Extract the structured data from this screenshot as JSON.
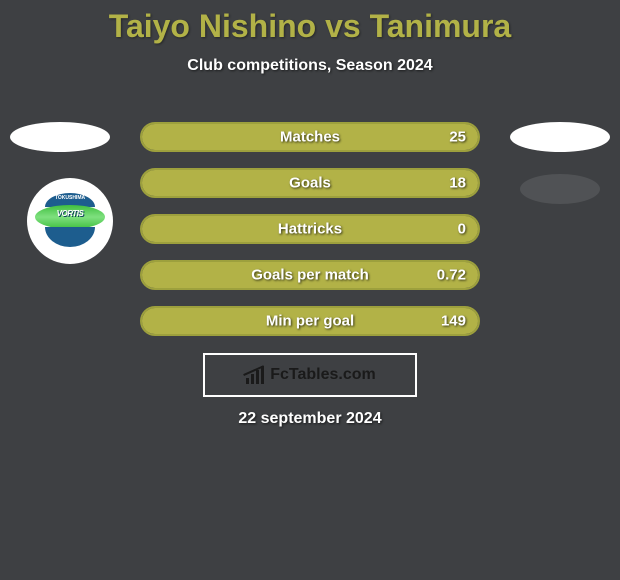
{
  "title": "Taiyo Nishino vs Tanimura",
  "title_color": "#b2b247",
  "subtitle": "Club competitions, Season 2024",
  "background_color": "#3e4043",
  "bar_fill_color": "#b2b247",
  "bar_border_color": "#9da03d",
  "stats": [
    {
      "label": "Matches",
      "value": "25"
    },
    {
      "label": "Goals",
      "value": "18"
    },
    {
      "label": "Hattricks",
      "value": "0"
    },
    {
      "label": "Goals per match",
      "value": "0.72"
    },
    {
      "label": "Min per goal",
      "value": "149"
    }
  ],
  "team_logo": {
    "text": "VORTIS",
    "subtext": "TOKUSHIMA"
  },
  "attribution": "FcTables.com",
  "date": "22 september 2024"
}
